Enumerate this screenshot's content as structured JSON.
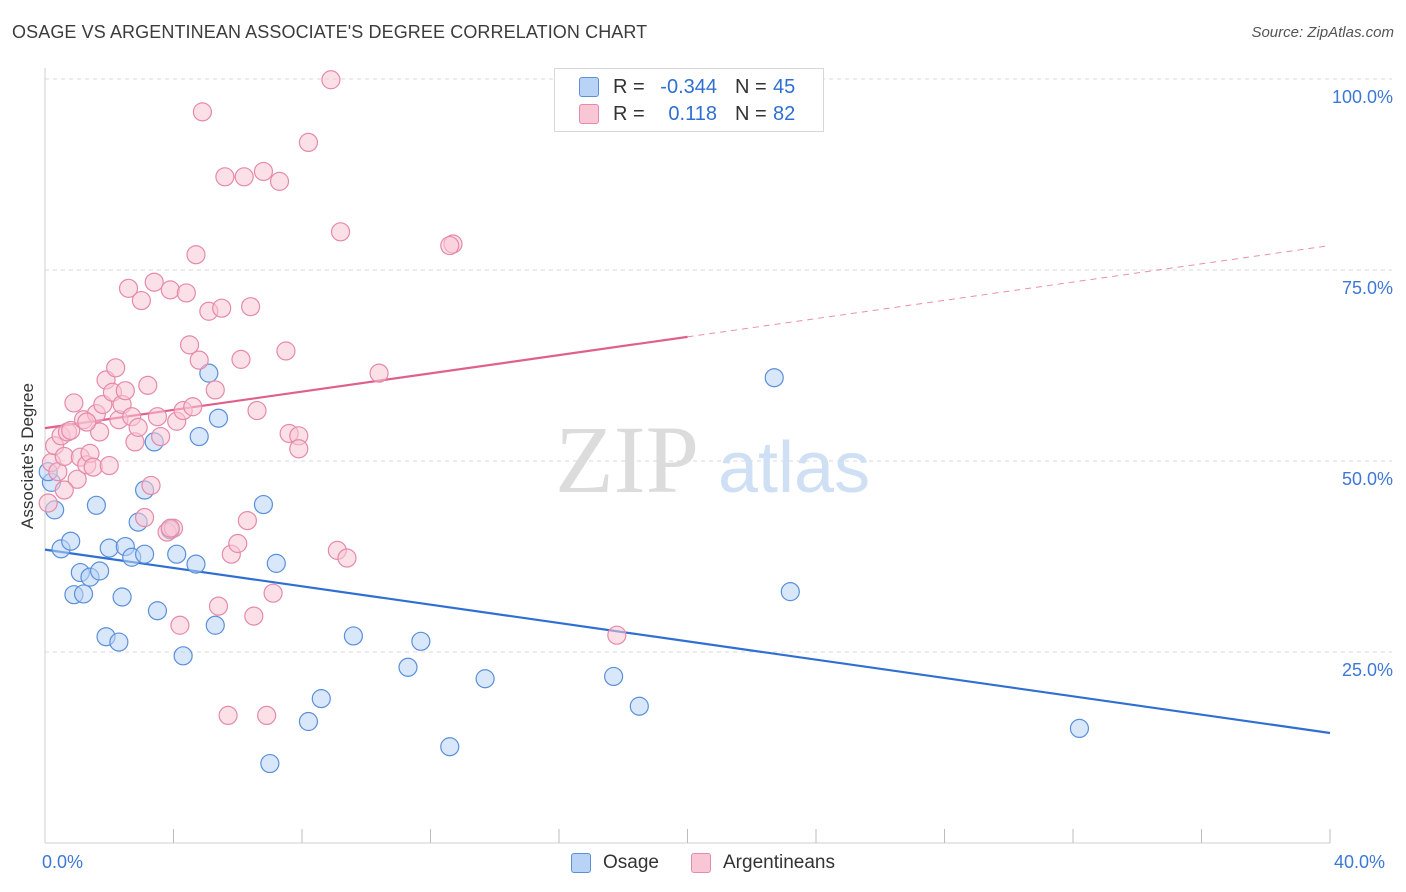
{
  "header": {
    "title": "OSAGE VS ARGENTINEAN ASSOCIATE'S DEGREE CORRELATION CHART",
    "source": "Source: ZipAtlas.com"
  },
  "watermark": {
    "zip": "ZIP",
    "atlas": "atlas"
  },
  "legend": {
    "rows": [
      {
        "r_label": "R =",
        "r_value": "-0.344",
        "n_label": "N =",
        "n_value": "45"
      },
      {
        "r_label": "R =",
        "r_value": "0.118",
        "n_label": "N =",
        "n_value": "82"
      }
    ],
    "series": [
      "Osage",
      "Argentineans"
    ]
  },
  "colors": {
    "osage_fill": "#b8d3f5",
    "osage_stroke": "#5b8fd9",
    "osage_line": "#2f6fd1",
    "arg_fill": "#f9c6d6",
    "arg_stroke": "#e58aa8",
    "arg_line": "#e0608c",
    "grid": "#d9d9d9",
    "tick_text": "#3d78d6"
  },
  "chart_data": {
    "type": "scatter",
    "title": "OSAGE VS ARGENTINEAN ASSOCIATE'S DEGREE CORRELATION CHART",
    "xlabel": "",
    "ylabel": "Associate's Degree",
    "xlim": [
      0,
      40
    ],
    "ylim": [
      0,
      100
    ],
    "x_tick_labels": [
      "0.0%",
      "40.0%"
    ],
    "y_ticks": [
      {
        "value": 100,
        "label": "100.0%"
      },
      {
        "value": 75,
        "label": "75.0%"
      },
      {
        "value": 50,
        "label": "50.0%"
      },
      {
        "value": 25,
        "label": "25.0%"
      }
    ],
    "grid": true,
    "legend_position": "top-center",
    "series": [
      {
        "name": "Osage",
        "r": -0.344,
        "n": 45,
        "trend": {
          "x0": 0,
          "y0": 38.4,
          "x1": 40,
          "y1": 14.4,
          "solid_until": 40
        },
        "points": [
          [
            0.2,
            47.2
          ],
          [
            0.3,
            43.6
          ],
          [
            0.5,
            38.5
          ],
          [
            0.8,
            39.5
          ],
          [
            0.9,
            32.5
          ],
          [
            1.1,
            35.4
          ],
          [
            1.2,
            32.6
          ],
          [
            1.4,
            34.8
          ],
          [
            1.6,
            44.2
          ],
          [
            1.7,
            35.6
          ],
          [
            1.9,
            27.0
          ],
          [
            2.0,
            38.6
          ],
          [
            2.3,
            26.3
          ],
          [
            2.4,
            32.2
          ],
          [
            2.5,
            38.8
          ],
          [
            2.7,
            37.4
          ],
          [
            2.9,
            42.0
          ],
          [
            3.1,
            37.8
          ],
          [
            3.1,
            46.2
          ],
          [
            3.4,
            52.5
          ],
          [
            3.5,
            30.4
          ],
          [
            3.9,
            41.0
          ],
          [
            4.1,
            37.8
          ],
          [
            4.3,
            24.5
          ],
          [
            4.7,
            36.5
          ],
          [
            4.8,
            53.2
          ],
          [
            5.1,
            61.5
          ],
          [
            5.3,
            28.5
          ],
          [
            5.4,
            55.6
          ],
          [
            6.8,
            44.3
          ],
          [
            7.0,
            10.4
          ],
          [
            7.2,
            36.6
          ],
          [
            8.2,
            15.9
          ],
          [
            8.6,
            18.9
          ],
          [
            9.6,
            27.1
          ],
          [
            11.3,
            23.0
          ],
          [
            11.7,
            26.4
          ],
          [
            12.6,
            12.6
          ],
          [
            13.7,
            21.5
          ],
          [
            17.7,
            21.8
          ],
          [
            18.5,
            17.9
          ],
          [
            22.7,
            60.9
          ],
          [
            23.2,
            32.9
          ],
          [
            32.2,
            15.0
          ],
          [
            0.1,
            48.6
          ]
        ]
      },
      {
        "name": "Argentineans",
        "r": 0.118,
        "n": 82,
        "trend": {
          "x0": 0,
          "y0": 54.3,
          "x1": 40,
          "y1": 78.2,
          "solid_until": 20
        },
        "points": [
          [
            0.1,
            44.5
          ],
          [
            0.2,
            49.8
          ],
          [
            0.3,
            52.0
          ],
          [
            0.4,
            48.6
          ],
          [
            0.5,
            53.3
          ],
          [
            0.6,
            50.6
          ],
          [
            0.7,
            53.8
          ],
          [
            0.8,
            54.0
          ],
          [
            0.9,
            57.6
          ],
          [
            1.0,
            47.6
          ],
          [
            1.1,
            50.5
          ],
          [
            1.2,
            55.4
          ],
          [
            1.3,
            49.5
          ],
          [
            1.4,
            51.0
          ],
          [
            1.5,
            49.2
          ],
          [
            1.6,
            56.2
          ],
          [
            1.7,
            53.8
          ],
          [
            1.8,
            57.4
          ],
          [
            1.9,
            60.6
          ],
          [
            2.0,
            49.4
          ],
          [
            2.1,
            59.0
          ],
          [
            2.2,
            62.2
          ],
          [
            2.3,
            55.4
          ],
          [
            2.4,
            57.4
          ],
          [
            2.5,
            59.2
          ],
          [
            2.6,
            72.6
          ],
          [
            2.7,
            55.8
          ],
          [
            2.8,
            52.5
          ],
          [
            2.9,
            54.4
          ],
          [
            3.0,
            71.0
          ],
          [
            3.1,
            42.6
          ],
          [
            3.2,
            59.9
          ],
          [
            3.3,
            46.8
          ],
          [
            3.4,
            73.4
          ],
          [
            3.5,
            55.8
          ],
          [
            3.6,
            53.2
          ],
          [
            3.8,
            40.7
          ],
          [
            3.9,
            72.4
          ],
          [
            4.0,
            41.2
          ],
          [
            4.1,
            55.2
          ],
          [
            4.2,
            28.5
          ],
          [
            4.3,
            56.6
          ],
          [
            4.4,
            72.0
          ],
          [
            4.5,
            65.2
          ],
          [
            4.6,
            57.1
          ],
          [
            4.7,
            77.0
          ],
          [
            4.8,
            63.2
          ],
          [
            4.9,
            95.7
          ],
          [
            5.1,
            69.6
          ],
          [
            5.3,
            59.3
          ],
          [
            5.4,
            31.0
          ],
          [
            5.5,
            70.0
          ],
          [
            5.6,
            87.2
          ],
          [
            5.7,
            16.7
          ],
          [
            5.8,
            37.8
          ],
          [
            6.0,
            39.2
          ],
          [
            6.1,
            63.3
          ],
          [
            6.2,
            87.2
          ],
          [
            6.3,
            42.2
          ],
          [
            6.4,
            70.2
          ],
          [
            6.5,
            29.7
          ],
          [
            6.6,
            56.6
          ],
          [
            6.8,
            87.9
          ],
          [
            6.9,
            16.7
          ],
          [
            7.1,
            32.7
          ],
          [
            7.3,
            86.6
          ],
          [
            7.5,
            64.4
          ],
          [
            7.6,
            53.6
          ],
          [
            7.9,
            53.3
          ],
          [
            7.9,
            51.6
          ],
          [
            8.2,
            91.7
          ],
          [
            8.9,
            99.9
          ],
          [
            9.1,
            38.3
          ],
          [
            9.2,
            80.0
          ],
          [
            9.4,
            37.3
          ],
          [
            10.4,
            61.5
          ],
          [
            12.7,
            78.4
          ],
          [
            12.6,
            78.2
          ],
          [
            17.8,
            27.2
          ],
          [
            1.3,
            55.1
          ],
          [
            0.6,
            46.2
          ],
          [
            3.9,
            41.2
          ]
        ]
      }
    ]
  }
}
